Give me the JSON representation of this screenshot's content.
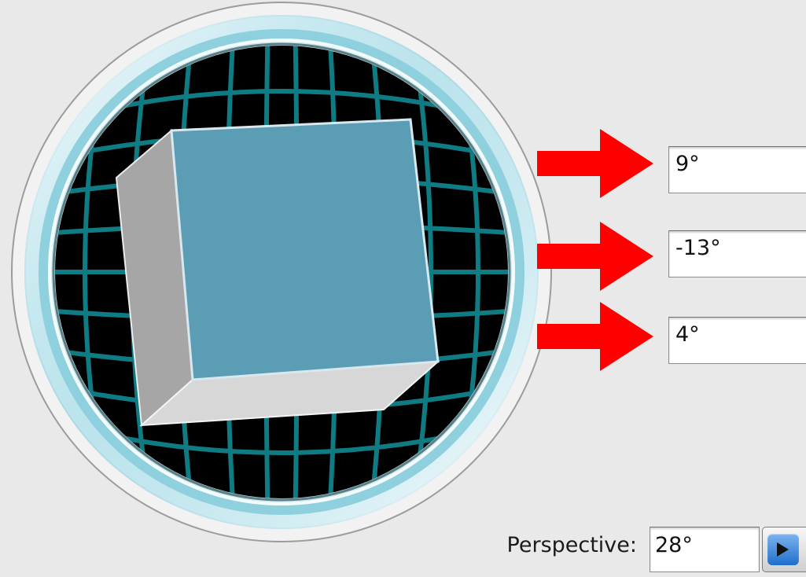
{
  "rotation": {
    "x_angle": "9°",
    "y_angle": "-13°",
    "z_angle": "4°"
  },
  "perspective": {
    "label": "Perspective:",
    "value": "28°",
    "stepper_icon": "play-triangle-icon"
  },
  "colors": {
    "cube_front": "#5a9db4",
    "cube_side": "#a6a6a6",
    "cube_bottom": "#d7d7d7",
    "grid": "#11757c",
    "ring": "#a9dde8",
    "arrow": "#ff0000",
    "stepper": "#2b7cd6"
  }
}
